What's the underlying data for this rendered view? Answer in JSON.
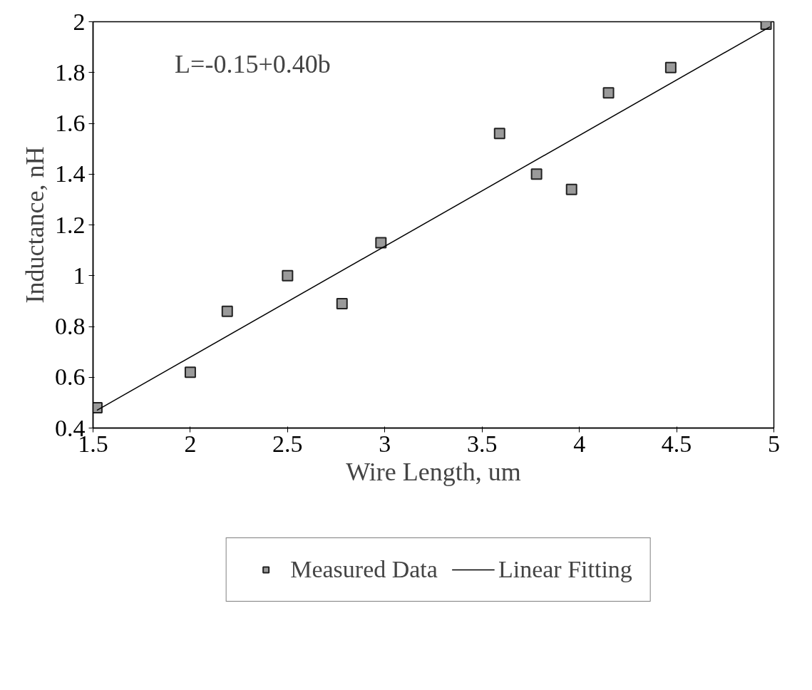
{
  "chart_data": {
    "type": "scatter",
    "xlabel": "Wire Length, um",
    "ylabel": "Inductance, nH",
    "annotations": [
      "L=-0.15+0.40b"
    ],
    "xlim": [
      1.5,
      5
    ],
    "ylim": [
      0.4,
      2
    ],
    "xticks": [
      1.5,
      2,
      2.5,
      3,
      3.5,
      4,
      4.5,
      5
    ],
    "yticks": [
      0.4,
      0.6,
      0.8,
      1,
      1.2,
      1.4,
      1.6,
      1.8,
      2
    ],
    "grid": false,
    "legend": "bottom",
    "marker": "square",
    "series": [
      {
        "name": "Measured Data",
        "type": "scatter",
        "color": "#9a9a9a",
        "x": [
          1.52,
          2.0,
          2.19,
          2.5,
          2.78,
          2.98,
          3.59,
          3.78,
          3.96,
          4.15,
          4.47,
          4.96
        ],
        "values": [
          0.48,
          0.62,
          0.86,
          1.0,
          0.89,
          1.13,
          1.56,
          1.4,
          1.34,
          1.72,
          1.82,
          1.99
        ]
      },
      {
        "name": "Linear Fitting",
        "type": "line",
        "color": "#000000",
        "marker": "none",
        "line_style": "solid",
        "x": [
          1.52,
          4.98
        ],
        "values": [
          0.47,
          1.98
        ]
      }
    ]
  }
}
